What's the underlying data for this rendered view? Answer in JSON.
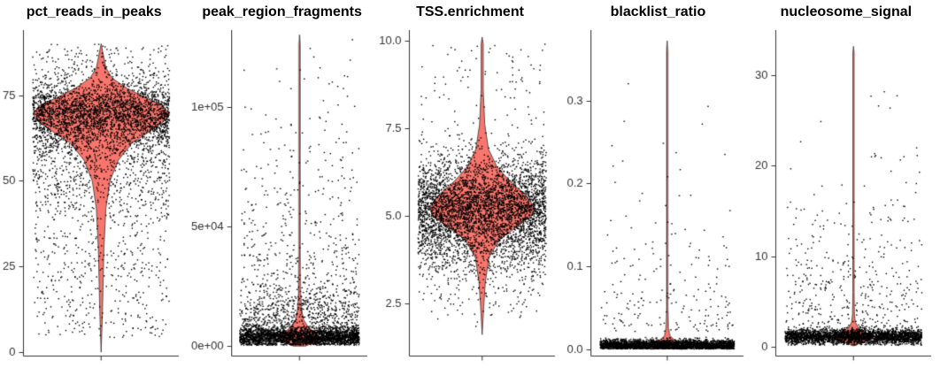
{
  "figure": {
    "background": "#ffffff",
    "violin_fill": "#F8766D",
    "violin_stroke": "#333333",
    "point_color": "#000000",
    "axis_color": "#333333",
    "tick_label_color": "#333333",
    "title_color": "#000000"
  },
  "chart_data": [
    {
      "type": "violin",
      "title": "pct_reads_in_peaks",
      "ylim": [
        -1,
        94
      ],
      "yticks": [
        {
          "value": 0,
          "label": "0"
        },
        {
          "value": 25,
          "label": "25"
        },
        {
          "value": 50,
          "label": "50"
        },
        {
          "value": 75,
          "label": "75"
        }
      ],
      "n_points": 4200,
      "mixture": [
        {
          "dist": "normal",
          "mean": 70,
          "sd": 5,
          "min": 52,
          "max": 89,
          "weight": 0.62
        },
        {
          "dist": "normal",
          "mean": 58,
          "sd": 9,
          "min": 28,
          "max": 76,
          "weight": 0.22
        },
        {
          "dist": "uniform",
          "min": 4,
          "max": 50,
          "weight": 0.13
        },
        {
          "dist": "uniform",
          "min": 80,
          "max": 90,
          "weight": 0.03
        }
      ],
      "violin": {
        "y": [
          0,
          12,
          30,
          42,
          50,
          56,
          61,
          64,
          67,
          69.5,
          72,
          74,
          77,
          80,
          83,
          87,
          90
        ],
        "w": [
          0,
          0.02,
          0.04,
          0.07,
          0.13,
          0.25,
          0.45,
          0.68,
          0.9,
          1.0,
          0.9,
          0.68,
          0.38,
          0.16,
          0.07,
          0.03,
          0
        ]
      },
      "violin_halfwidth_frac": 0.44,
      "jitter_halfwidth_frac": 0.44
    },
    {
      "type": "violin",
      "title": "peak_region_fragments",
      "ylim": [
        -4000,
        132000
      ],
      "yticks": [
        {
          "value": 0,
          "label": "0e+00"
        },
        {
          "value": 50000,
          "label": "5e+04"
        },
        {
          "value": 100000,
          "label": "1e+05"
        }
      ],
      "n_points": 3800,
      "mixture": [
        {
          "dist": "normal",
          "mean": 3500,
          "sd": 2200,
          "min": 300,
          "max": 9000,
          "weight": 0.62
        },
        {
          "dist": "normal",
          "mean": 9000,
          "sd": 6000,
          "min": 500,
          "max": 30000,
          "weight": 0.22
        },
        {
          "dist": "exp",
          "offset": 15000,
          "scale": 30000,
          "max": 128000,
          "weight": 0.16
        }
      ],
      "violin": {
        "y": [
          0,
          1500,
          3200,
          4800,
          6500,
          8500,
          11000,
          15000,
          22000,
          40000,
          80000,
          126000,
          130000
        ],
        "w": [
          0.3,
          0.75,
          1.0,
          0.88,
          0.62,
          0.38,
          0.2,
          0.1,
          0.05,
          0.03,
          0.02,
          0.02,
          0
        ]
      },
      "violin_halfwidth_frac": 0.15,
      "jitter_halfwidth_frac": 0.44
    },
    {
      "type": "violin",
      "title": "TSS.enrichment",
      "ylim": [
        1.0,
        10.3
      ],
      "yticks": [
        {
          "value": 2.5,
          "label": "2.5"
        },
        {
          "value": 5.0,
          "label": "5.0"
        },
        {
          "value": 7.5,
          "label": "7.5"
        },
        {
          "value": 10.0,
          "label": "10.0"
        }
      ],
      "n_points": 4500,
      "mixture": [
        {
          "dist": "normal",
          "mean": 5.2,
          "sd": 0.75,
          "min": 3.2,
          "max": 7.6,
          "weight": 0.8
        },
        {
          "dist": "normal",
          "mean": 4.4,
          "sd": 1.1,
          "min": 2.2,
          "max": 8.4,
          "weight": 0.14
        },
        {
          "dist": "uniform",
          "min": 1.8,
          "max": 9.9,
          "weight": 0.06
        }
      ],
      "violin": {
        "y": [
          1.6,
          2.4,
          3.1,
          3.8,
          4.3,
          4.7,
          5.0,
          5.25,
          5.6,
          6.0,
          6.4,
          6.9,
          7.6,
          8.6,
          9.9,
          10.1
        ],
        "w": [
          0,
          0.03,
          0.06,
          0.13,
          0.32,
          0.68,
          0.95,
          1.0,
          0.82,
          0.52,
          0.28,
          0.12,
          0.05,
          0.02,
          0.02,
          0
        ]
      },
      "violin_halfwidth_frac": 0.36,
      "jitter_halfwidth_frac": 0.44
    },
    {
      "type": "violin",
      "title": "blacklist_ratio",
      "ylim": [
        -0.008,
        0.385
      ],
      "yticks": [
        {
          "value": 0,
          "label": "0.0"
        },
        {
          "value": 0.1,
          "label": "0.1"
        },
        {
          "value": 0.2,
          "label": "0.2"
        },
        {
          "value": 0.3,
          "label": "0.3"
        }
      ],
      "n_points": 3000,
      "mixture": [
        {
          "dist": "normal",
          "mean": 0.004,
          "sd": 0.0035,
          "min": 0,
          "max": 0.016,
          "weight": 0.93
        },
        {
          "dist": "exp",
          "offset": 0.02,
          "scale": 0.06,
          "max": 0.375,
          "weight": 0.07
        }
      ],
      "violin": {
        "y": [
          0,
          0.003,
          0.007,
          0.011,
          0.016,
          0.025,
          0.05,
          0.12,
          0.36,
          0.372
        ],
        "w": [
          0.85,
          1.0,
          0.7,
          0.35,
          0.14,
          0.06,
          0.03,
          0.02,
          0.02,
          0
        ]
      },
      "violin_halfwidth_frac": 0.13,
      "jitter_halfwidth_frac": 0.44
    },
    {
      "type": "violin",
      "title": "nucleosome_signal",
      "ylim": [
        -1,
        35
      ],
      "yticks": [
        {
          "value": 0,
          "label": "0"
        },
        {
          "value": 10,
          "label": "10"
        },
        {
          "value": 20,
          "label": "20"
        },
        {
          "value": 30,
          "label": "30"
        }
      ],
      "n_points": 3200,
      "mixture": [
        {
          "dist": "normal",
          "mean": 1.1,
          "sd": 0.45,
          "min": 0.15,
          "max": 2.4,
          "weight": 0.88
        },
        {
          "dist": "exp",
          "offset": 2.5,
          "scale": 6,
          "max": 33,
          "weight": 0.12
        }
      ],
      "violin": {
        "y": [
          0.1,
          0.5,
          0.8,
          1.05,
          1.3,
          1.6,
          2.1,
          2.7,
          3.6,
          6,
          15,
          32.5,
          33.2
        ],
        "w": [
          0.06,
          0.5,
          0.88,
          1.0,
          0.92,
          0.6,
          0.25,
          0.1,
          0.05,
          0.03,
          0.02,
          0.02,
          0
        ]
      },
      "violin_halfwidth_frac": 0.12,
      "jitter_halfwidth_frac": 0.44
    }
  ]
}
